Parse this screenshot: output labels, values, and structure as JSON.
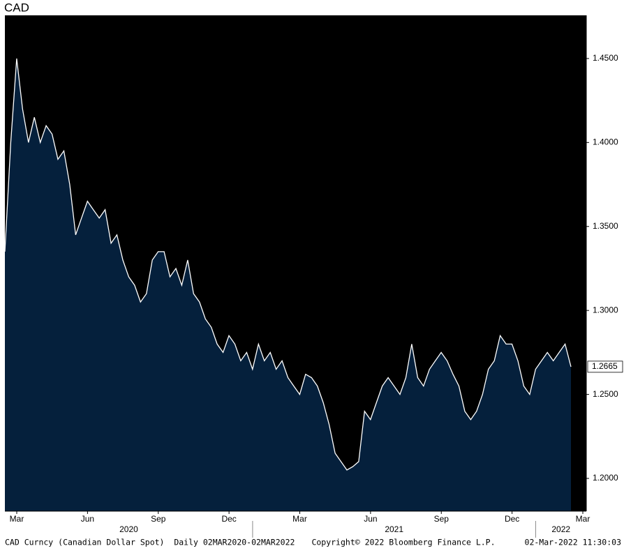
{
  "chart_data": {
    "type": "area",
    "title": "CAD",
    "categories": [
      "Mar",
      null,
      null,
      null,
      null,
      null,
      null,
      null,
      null,
      null,
      null,
      null,
      "Jun",
      null,
      null,
      null,
      null,
      null,
      null,
      null,
      null,
      null,
      null,
      null,
      "Sep",
      null,
      null,
      null,
      null,
      null,
      null,
      null,
      null,
      null,
      null,
      null,
      "Dec",
      null,
      null,
      null,
      null,
      null,
      null,
      null,
      null,
      null,
      null,
      null,
      "Mar",
      null,
      null,
      null,
      null,
      null,
      null,
      null,
      null,
      null,
      null,
      null,
      "Jun",
      null,
      null,
      null,
      null,
      null,
      null,
      null,
      null,
      null,
      null,
      null,
      "Sep",
      null,
      null,
      null,
      null,
      null,
      null,
      null,
      null,
      null,
      null,
      null,
      "Dec",
      null,
      null,
      null,
      null,
      null,
      null,
      null,
      null,
      null,
      null,
      null,
      "Mar"
    ],
    "years": [
      "2020",
      "2021",
      "2022"
    ],
    "values": [
      1.335,
      1.4,
      1.45,
      1.42,
      1.4,
      1.415,
      1.4,
      1.41,
      1.405,
      1.39,
      1.395,
      1.375,
      1.345,
      1.355,
      1.365,
      1.36,
      1.355,
      1.36,
      1.34,
      1.345,
      1.33,
      1.32,
      1.315,
      1.305,
      1.31,
      1.33,
      1.335,
      1.335,
      1.32,
      1.325,
      1.315,
      1.33,
      1.31,
      1.305,
      1.295,
      1.29,
      1.28,
      1.275,
      1.285,
      1.28,
      1.27,
      1.275,
      1.265,
      1.28,
      1.27,
      1.275,
      1.265,
      1.27,
      1.26,
      1.255,
      1.25,
      1.262,
      1.26,
      1.255,
      1.245,
      1.232,
      1.215,
      1.21,
      1.205,
      1.207,
      1.21,
      1.24,
      1.235,
      1.245,
      1.255,
      1.26,
      1.255,
      1.25,
      1.26,
      1.28,
      1.26,
      1.255,
      1.265,
      1.27,
      1.275,
      1.27,
      1.262,
      1.255,
      1.24,
      1.235,
      1.24,
      1.25,
      1.265,
      1.27,
      1.285,
      1.28,
      1.28,
      1.27,
      1.255,
      1.25,
      1.265,
      1.27,
      1.275,
      1.27,
      1.275,
      1.28,
      1.2665
    ],
    "color": "#ffffff",
    "fill_color": "#05203c",
    "background": "#000000",
    "ylim": [
      1.1805,
      1.4757
    ],
    "yticks": [
      {
        "value": 1.2,
        "label": "1.2000"
      },
      {
        "value": 1.25,
        "label": "1.2500"
      },
      {
        "value": 1.3,
        "label": "1.3000"
      },
      {
        "value": 1.35,
        "label": "1.3500"
      },
      {
        "value": 1.4,
        "label": "1.4000"
      },
      {
        "value": 1.45,
        "label": "1.4500"
      }
    ],
    "footer": {
      "left": "CAD Curncy (Canadian Dollar Spot)  Daily 02MAR2020-02MAR2022",
      "center": "Copyright© 2022 Bloomberg Finance L.P.",
      "right": "02-Mar-2022 11:30:03"
    }
  }
}
